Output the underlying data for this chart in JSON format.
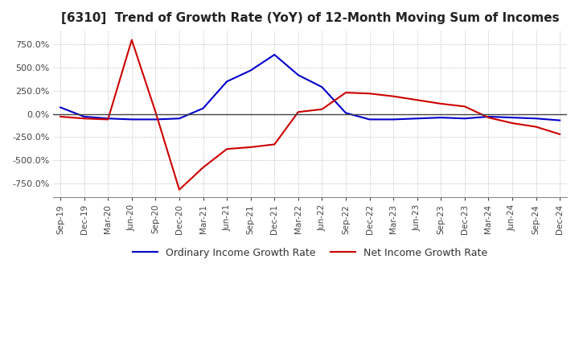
{
  "title": "[6310]  Trend of Growth Rate (YoY) of 12-Month Moving Sum of Incomes",
  "title_fontsize": 11,
  "ylim": [
    -900,
    900
  ],
  "yticks": [
    -750,
    -500,
    -250,
    0,
    250,
    500,
    750
  ],
  "background_color": "#ffffff",
  "grid_color": "#aaaaaa",
  "ordinary_color": "#0000cc",
  "net_color": "#cc0000",
  "legend_ordinary": "Ordinary Income Growth Rate",
  "legend_net": "Net Income Growth Rate",
  "x_labels": [
    "Sep-19",
    "Dec-19",
    "Mar-20",
    "Jun-20",
    "Sep-20",
    "Dec-20",
    "Mar-21",
    "Jun-21",
    "Sep-21",
    "Dec-21",
    "Mar-22",
    "Jun-22",
    "Sep-22",
    "Dec-22",
    "Mar-23",
    "Jun-23",
    "Sep-23",
    "Dec-23",
    "Mar-24",
    "Jun-24",
    "Sep-24",
    "Dec-24"
  ],
  "ordinary_values": [
    70,
    -30,
    -50,
    -60,
    -60,
    -50,
    60,
    350,
    470,
    640,
    420,
    290,
    10,
    -60,
    -60,
    -50,
    -40,
    -50,
    -30,
    -40,
    -50,
    -70
  ],
  "net_values": [
    -30,
    -50,
    -60,
    800,
    20,
    -820,
    -580,
    -380,
    -360,
    -330,
    20,
    50,
    230,
    220,
    190,
    150,
    110,
    80,
    -40,
    -100,
    -140,
    -220
  ]
}
